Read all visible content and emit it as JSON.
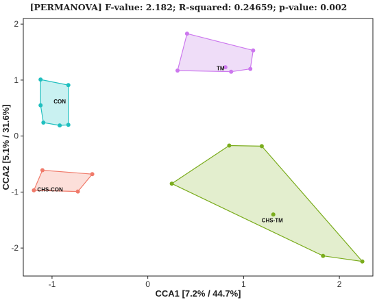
{
  "chart_data": {
    "type": "scatter",
    "title": "[PERMANOVA] F-value: 2.182; R-squared: 0.24659; p-value: 0.002",
    "xlabel": "CCA1 [7.2% / 44.7%]",
    "ylabel": "CCA2 [5.1% / 31.6%]",
    "xlim": [
      -1.3,
      2.35
    ],
    "ylim": [
      -2.5,
      2.1
    ],
    "xticks": [
      -1,
      0,
      1,
      2
    ],
    "yticks": [
      2,
      1,
      0,
      -1,
      -2
    ],
    "grid": false,
    "legend": "none",
    "groups": [
      {
        "name": "CON",
        "color": "#1fbfbf",
        "fill": "#bfeeee",
        "centroid": [
          -0.92,
          0.62
        ],
        "points": [
          [
            -1.12,
            1.01
          ],
          [
            -0.83,
            0.91
          ],
          [
            -1.12,
            0.55
          ],
          [
            -1.09,
            0.24
          ],
          [
            -0.92,
            0.19
          ],
          [
            -0.83,
            0.2
          ]
        ]
      },
      {
        "name": "TM",
        "color": "#cc77ee",
        "fill": "#ecd7f7",
        "centroid": [
          0.76,
          1.21
        ],
        "points": [
          [
            0.41,
            1.83
          ],
          [
            1.1,
            1.53
          ],
          [
            1.07,
            1.2
          ],
          [
            0.87,
            1.15
          ],
          [
            0.31,
            1.17
          ],
          [
            0.81,
            1.23
          ]
        ]
      },
      {
        "name": "CHS-CON",
        "color": "#f07a6a",
        "fill": "#fbd9d4",
        "centroid": [
          -1.02,
          -0.95
        ],
        "points": [
          [
            -1.1,
            -0.61
          ],
          [
            -0.58,
            -0.68
          ],
          [
            -0.73,
            -0.99
          ],
          [
            -1.19,
            -0.97
          ]
        ]
      },
      {
        "name": "CHS-TM",
        "color": "#7aac1c",
        "fill": "#deebc6",
        "centroid": [
          1.3,
          -1.5
        ],
        "points": [
          [
            0.85,
            -0.17
          ],
          [
            1.19,
            -0.18
          ],
          [
            0.25,
            -0.85
          ],
          [
            1.83,
            -2.14
          ],
          [
            2.24,
            -2.24
          ],
          [
            1.31,
            -1.4
          ]
        ]
      }
    ]
  }
}
